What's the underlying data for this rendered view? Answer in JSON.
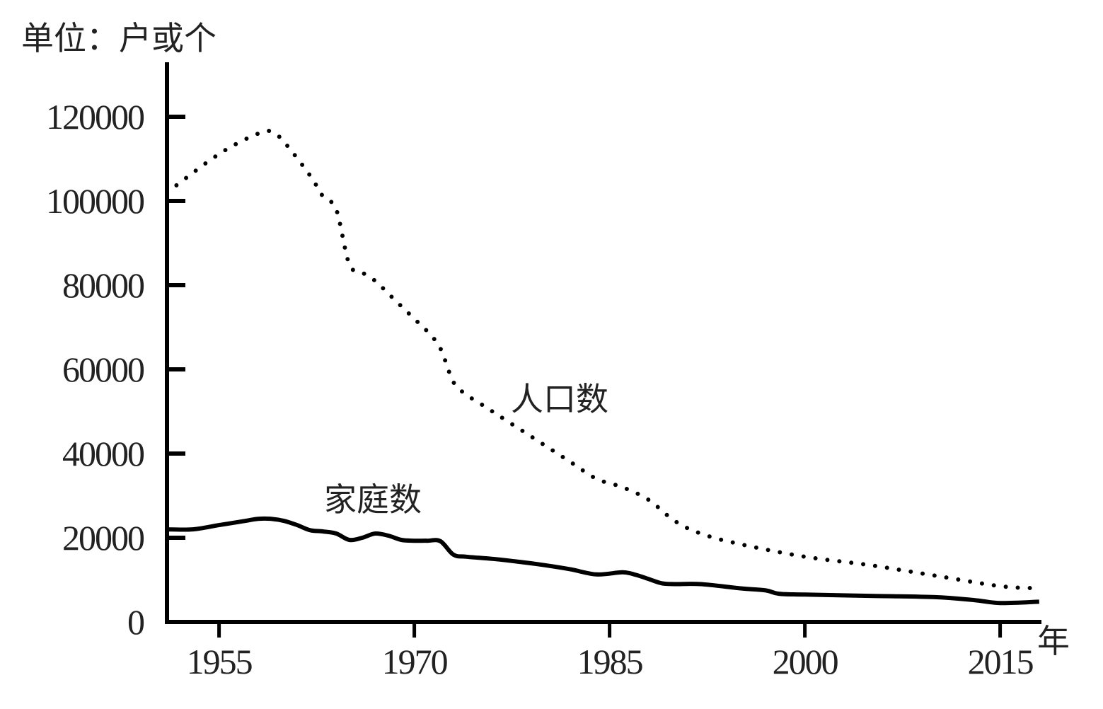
{
  "chart_data": {
    "type": "line",
    "ylabel": "单位：户或个",
    "xlabel": "年",
    "ylim": [
      0,
      125000
    ],
    "xlim": [
      1951,
      2019
    ],
    "xticks": [
      1955,
      1970,
      1985,
      2000,
      2015
    ],
    "yticks": [
      0,
      20000,
      40000,
      60000,
      80000,
      100000,
      120000
    ],
    "grid": false,
    "legend": "none",
    "series": [
      {
        "name": "人口数",
        "style": "dotted",
        "color": "#000000",
        "x": [
          1951,
          1954,
          1956,
          1958,
          1959,
          1960,
          1962,
          1963,
          1964,
          1965,
          1966,
          1967,
          1968,
          1969,
          1970,
          1971,
          1972,
          1973,
          1974,
          1975,
          1976,
          1978,
          1980,
          1982,
          1984,
          1986,
          1988,
          1990,
          1992,
          1995,
          2000,
          2005,
          2010,
          2015,
          2018
        ],
        "values": [
          102000,
          109000,
          113000,
          116000,
          116500,
          114000,
          106000,
          101000,
          98000,
          85000,
          83000,
          81000,
          78000,
          75000,
          72000,
          69000,
          65000,
          57000,
          54000,
          52000,
          50000,
          46000,
          42000,
          38000,
          34000,
          32000,
          29000,
          24000,
          21000,
          18500,
          15500,
          13500,
          11000,
          8500,
          8000
        ]
      },
      {
        "name": "家庭数",
        "style": "solid",
        "color": "#000000",
        "x": [
          1951,
          1953,
          1955,
          1957,
          1958,
          1959,
          1960,
          1961,
          1962,
          1963,
          1964,
          1965,
          1966,
          1967,
          1968,
          1969,
          1970,
          1971,
          1972,
          1973,
          1974,
          1976,
          1978,
          1980,
          1982,
          1984,
          1986,
          1987,
          1988,
          1989,
          1990,
          1992,
          1995,
          1997,
          1998,
          2000,
          2005,
          2010,
          2013,
          2015,
          2018
        ],
        "values": [
          22000,
          22000,
          23000,
          24000,
          24500,
          24500,
          24000,
          23000,
          21800,
          21500,
          21000,
          19500,
          20000,
          21000,
          20500,
          19500,
          19300,
          19300,
          19200,
          16000,
          15500,
          15000,
          14300,
          13500,
          12500,
          11300,
          11800,
          11200,
          10200,
          9200,
          9000,
          9000,
          8000,
          7500,
          6700,
          6500,
          6200,
          5900,
          5200,
          4500,
          4800
        ]
      }
    ],
    "annotations": [
      {
        "text": "人口数",
        "series": "人口数"
      },
      {
        "text": "家庭数",
        "series": "家庭数"
      }
    ]
  }
}
